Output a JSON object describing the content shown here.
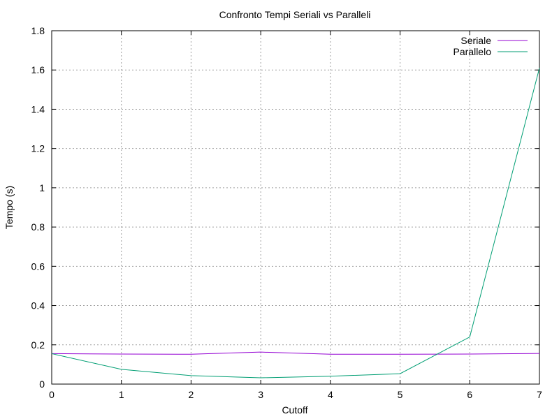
{
  "chart_data": {
    "type": "line",
    "title": "Confronto Tempi Seriali vs Paralleli",
    "xlabel": "Cutoff",
    "ylabel": "Tempo (s)",
    "xlim": [
      0,
      7
    ],
    "ylim": [
      0,
      1.8
    ],
    "x_ticks": [
      "0",
      "1",
      "2",
      "3",
      "4",
      "5",
      "6",
      "7"
    ],
    "y_ticks": [
      "0",
      "0.2",
      "0.4",
      "0.6",
      "0.8",
      "1",
      "1.2",
      "1.4",
      "1.6",
      "1.8"
    ],
    "grid": true,
    "legend_position": "top-right",
    "x": [
      0,
      1,
      2,
      3,
      4,
      5,
      6,
      7
    ],
    "series": [
      {
        "name": "Seriale",
        "color": "#9400d3",
        "values": [
          0.155,
          0.153,
          0.152,
          0.163,
          0.152,
          0.152,
          0.153,
          0.156
        ]
      },
      {
        "name": "Parallelo",
        "color": "#009e73",
        "values": [
          0.155,
          0.075,
          0.043,
          0.032,
          0.04,
          0.053,
          0.24,
          1.61
        ]
      }
    ]
  }
}
